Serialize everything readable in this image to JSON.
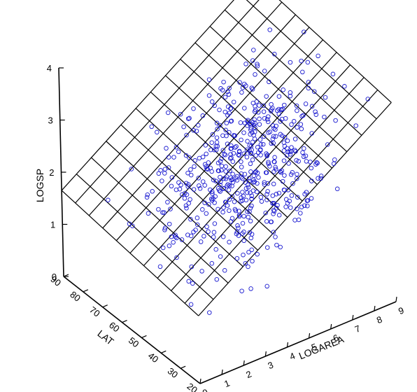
{
  "chart_data": {
    "type": "scatter3d-with-surface",
    "title": "",
    "zlabel": "LOGSP",
    "xlabel": "LOGAREA",
    "ylabel": "LAT",
    "z_ticks": [
      "0",
      "1",
      "2",
      "3",
      "4"
    ],
    "x_ticks": [
      "0",
      "1",
      "2",
      "3",
      "4",
      "5",
      "6",
      "7",
      "8",
      "9"
    ],
    "y_ticks": [
      "20",
      "30",
      "40",
      "50",
      "60",
      "70",
      "80",
      "90"
    ],
    "zlim": [
      0,
      4
    ],
    "xlim": [
      0,
      9
    ],
    "ylim": [
      20,
      90
    ],
    "surface": {
      "model": "LOGSP = 1.2 + 0.28*LOGAREA + 0.005*LAT",
      "x_range": [
        0,
        9
      ],
      "y_range": [
        20,
        90
      ],
      "grid_x_lines": 13,
      "grid_y_lines": 10
    },
    "point_cloud": {
      "n_points": 560,
      "x_center": 4.3,
      "x_spread": 1.6,
      "y_center": 45,
      "y_spread": 14,
      "residual_spread": 0.35
    },
    "marker": "hollow circle",
    "point_color": "#1a1ad0",
    "line_color": "#000000",
    "grid": false,
    "legend": "none"
  }
}
